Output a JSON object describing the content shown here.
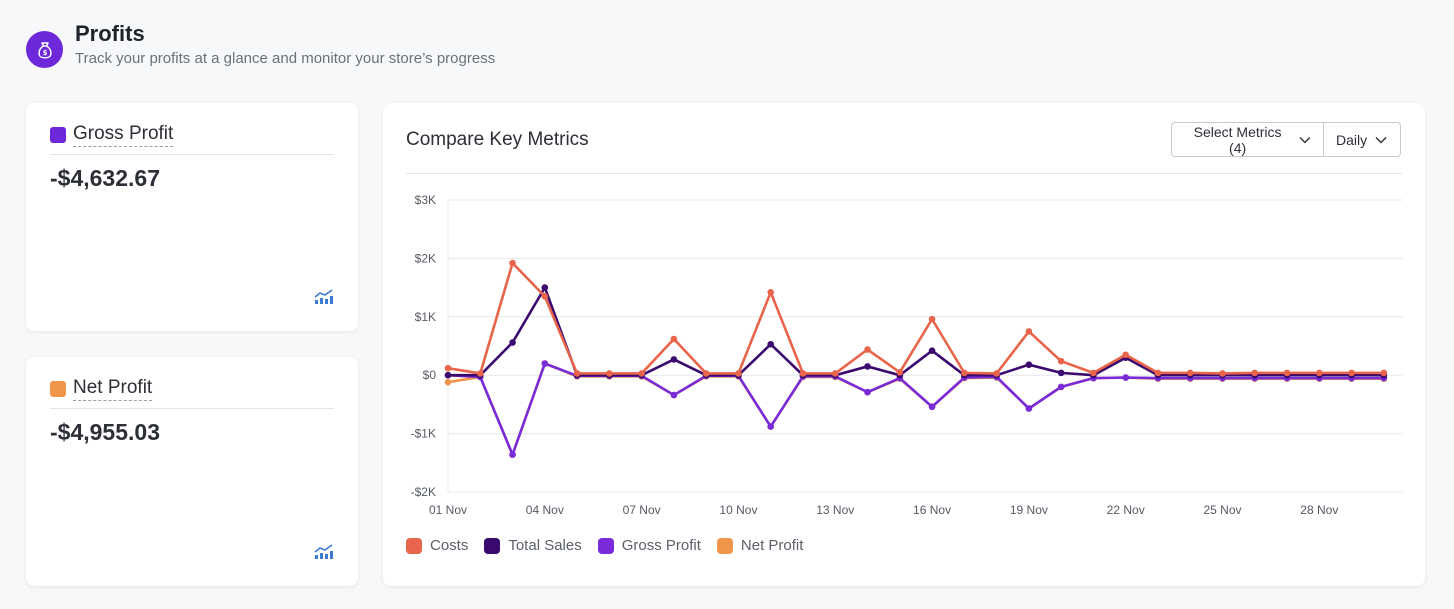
{
  "header": {
    "title": "Profits",
    "subtitle": "Track your profits at a glance and monitor your store’s progress",
    "icon": "money-bag-icon"
  },
  "kpis": [
    {
      "label": "Gross Profit",
      "value": "-$4,632.67",
      "color": "#6d28d9",
      "icon": "trend-chart-icon"
    },
    {
      "label": "Net Profit",
      "value": "-$4,955.03",
      "color": "#f0954a",
      "icon": "trend-chart-icon"
    }
  ],
  "chart_panel": {
    "title": "Compare Key Metrics",
    "select_metrics_label": "Select Metrics (4)",
    "interval_label": "Daily"
  },
  "chart_data": {
    "type": "line",
    "x": [
      "01 Nov",
      "02 Nov",
      "03 Nov",
      "04 Nov",
      "05 Nov",
      "06 Nov",
      "07 Nov",
      "08 Nov",
      "09 Nov",
      "10 Nov",
      "11 Nov",
      "12 Nov",
      "13 Nov",
      "14 Nov",
      "15 Nov",
      "16 Nov",
      "17 Nov",
      "18 Nov",
      "19 Nov",
      "20 Nov",
      "21 Nov",
      "22 Nov",
      "23 Nov",
      "24 Nov",
      "25 Nov",
      "26 Nov",
      "27 Nov",
      "28 Nov",
      "29 Nov",
      "30 Nov"
    ],
    "x_tick_labels": [
      "01 Nov",
      "04 Nov",
      "07 Nov",
      "10 Nov",
      "13 Nov",
      "16 Nov",
      "19 Nov",
      "22 Nov",
      "25 Nov",
      "28 Nov"
    ],
    "y_tick_labels": [
      "$3K",
      "$2K",
      "$1K",
      "$0",
      "-$1K",
      "-$2K"
    ],
    "y_ticks": [
      3000,
      2000,
      1000,
      0,
      -1000,
      -2000
    ],
    "ylim": [
      -2000,
      3000
    ],
    "grid": true,
    "legend_position": "bottom-left",
    "series": [
      {
        "name": "Costs",
        "color": "#e8644a",
        "values": [
          120,
          30,
          1920,
          1350,
          30,
          30,
          30,
          620,
          30,
          30,
          1420,
          30,
          30,
          440,
          50,
          960,
          40,
          30,
          750,
          240,
          40,
          350,
          40,
          40,
          30,
          40,
          40,
          40,
          40,
          40
        ]
      },
      {
        "name": "Total Sales",
        "color": "#3b0a6e",
        "values": [
          0,
          0,
          560,
          1500,
          0,
          0,
          0,
          270,
          0,
          0,
          530,
          0,
          0,
          150,
          0,
          420,
          0,
          0,
          180,
          40,
          0,
          300,
          0,
          0,
          0,
          0,
          0,
          0,
          0,
          0
        ]
      },
      {
        "name": "Gross Profit",
        "color": "#7a2bd9",
        "values": [
          0,
          -30,
          -1360,
          200,
          -10,
          -10,
          -10,
          -340,
          -10,
          -10,
          -880,
          -20,
          -20,
          -290,
          -50,
          -540,
          -40,
          -30,
          -570,
          -200,
          -50,
          -40,
          -50,
          -50,
          -50,
          -50,
          -50,
          -50,
          -50,
          -50
        ]
      },
      {
        "name": "Net Profit",
        "color": "#f0954a",
        "values": [
          -120,
          -30,
          -1360,
          200,
          -20,
          -20,
          -20,
          -340,
          -20,
          -20,
          -880,
          -30,
          -30,
          -290,
          -60,
          -540,
          -50,
          -40,
          -570,
          -200,
          -50,
          -40,
          -60,
          -60,
          -60,
          -60,
          -60,
          -60,
          -60,
          -60
        ]
      }
    ]
  }
}
